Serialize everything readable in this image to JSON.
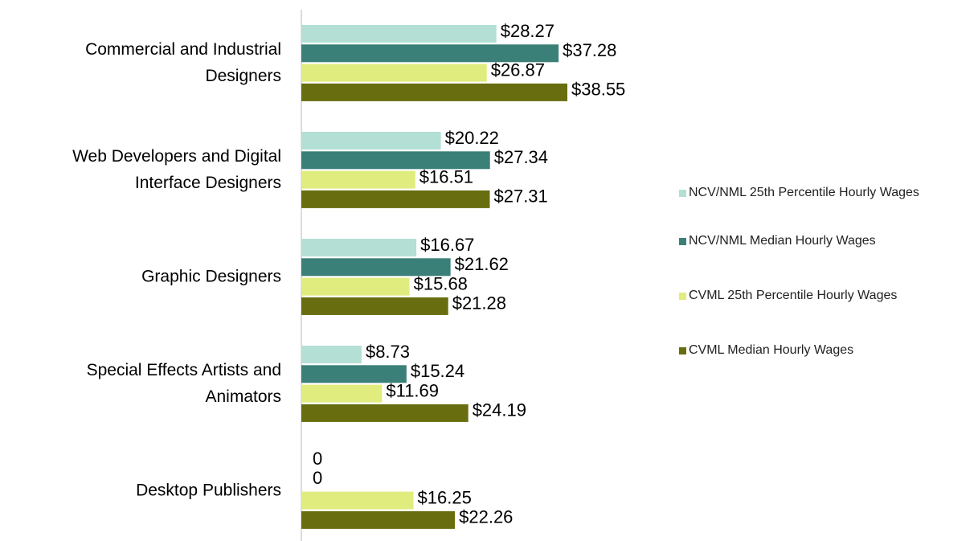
{
  "chart_data": {
    "type": "bar",
    "orientation": "horizontal",
    "categories": [
      "Commercial and Industrial Designers",
      "Web Developers and Digital Interface Designers",
      "Graphic Designers",
      "Special Effects Artists and Animators",
      "Desktop Publishers"
    ],
    "series": [
      {
        "name": "NCV/NML 25th Percentile Hourly Wages",
        "color": "#b3dfd5",
        "values": [
          28.27,
          20.22,
          16.67,
          8.73,
          0
        ],
        "value_labels": [
          "$28.27",
          "$20.22",
          "$16.67",
          "$8.73",
          "0"
        ]
      },
      {
        "name": "NCV/NML Median Hourly Wages",
        "color": "#3a8078",
        "values": [
          37.28,
          27.34,
          21.62,
          15.24,
          0
        ],
        "value_labels": [
          "$37.28",
          "$27.34",
          "$21.62",
          "$15.24",
          "0"
        ]
      },
      {
        "name": "CVML 25th Percentile Hourly Wages",
        "color": "#e1ec7e",
        "values": [
          26.87,
          16.51,
          15.68,
          11.69,
          16.25
        ],
        "value_labels": [
          "$26.87",
          "$16.51",
          "$15.68",
          "$11.69",
          "$16.25"
        ]
      },
      {
        "name": "CVML Median Hourly Wages",
        "color": "#686d0f",
        "values": [
          38.55,
          27.31,
          21.28,
          24.19,
          22.26
        ],
        "value_labels": [
          "$38.55",
          "$27.31",
          "$21.28",
          "$24.19",
          "$22.26"
        ]
      }
    ],
    "legend": "right"
  }
}
